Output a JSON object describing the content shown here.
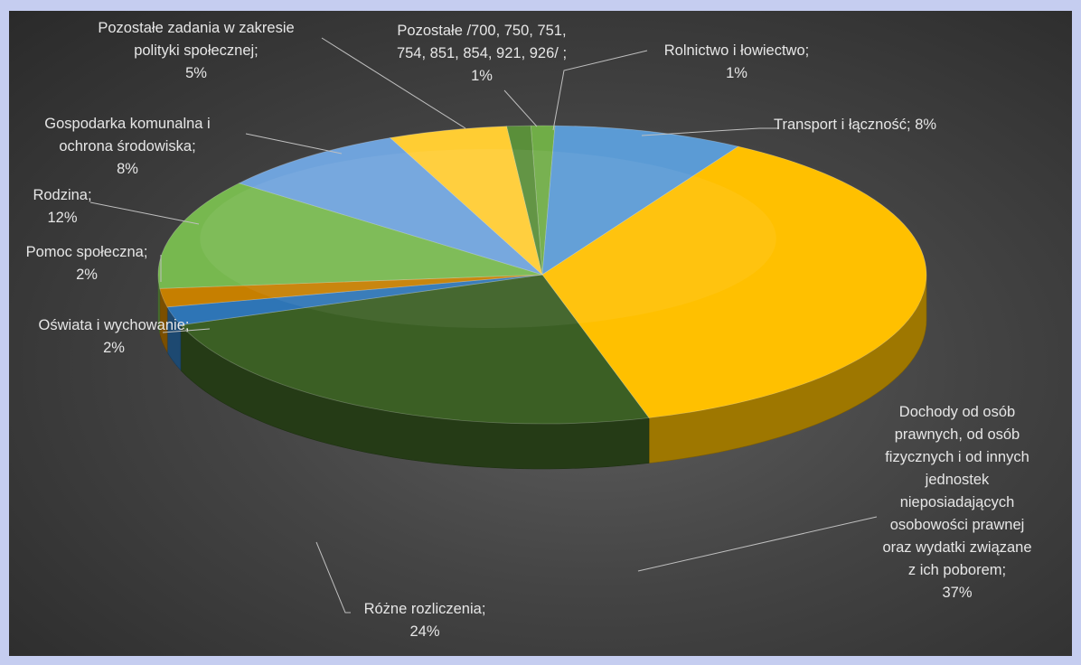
{
  "chart_data": {
    "type": "pie",
    "title": "",
    "slices": [
      {
        "label": "Rolnictwo i łowiectwo;\n1%",
        "name": "Rolnictwo i łowiectwo",
        "value": 1,
        "color": "#70ad47"
      },
      {
        "label": "Transport i łączność; 8%",
        "name": "Transport i łączność",
        "value": 8,
        "color": "#5b9bd5"
      },
      {
        "label": "Dochody od osób\nprawnych, od osób\nfizycznych i od innych\njednostek\nnieposiadających\nosobowości prawnej\noraz wydatki związane\nz ich poborem;\n37%",
        "name": "Dochody od osób prawnych, od osób fizycznych i od innych jednostek nieposiadających osobowości prawnej oraz wydatki związane z ich poborem",
        "value": 37,
        "color": "#ffc000"
      },
      {
        "label": "Różne rozliczenia;\n24%",
        "name": "Różne rozliczenia",
        "value": 24,
        "color": "#3b5f24"
      },
      {
        "label": "Oświata i wychowanie;\n2%",
        "name": "Oświata i wychowanie",
        "value": 2,
        "color": "#2e75b6"
      },
      {
        "label": "Pomoc społeczna;\n2%",
        "name": "Pomoc społeczna",
        "value": 2,
        "color": "#c67f00"
      },
      {
        "label": "Rodzina;\n12%",
        "name": "Rodzina",
        "value": 12,
        "color": "#77b84f"
      },
      {
        "label": "Gospodarka komunalna i\nochrona środowiska;\n8%",
        "name": "Gospodarka komunalna i ochrona środowiska",
        "value": 8,
        "color": "#6fa3dc"
      },
      {
        "label": "Pozostałe zadania w zakresie\npolityki społecznej;\n5%",
        "name": "Pozostałe zadania w zakresie polityki społecznej",
        "value": 5,
        "color": "#ffcd33"
      },
      {
        "label": "Pozostałe /700, 750, 751,\n754, 851,  854, 921, 926/ ;\n1%",
        "name": "Pozostałe /700, 750, 751, 754, 851, 854, 921, 926/",
        "value": 1,
        "color": "#5a8f3a"
      }
    ],
    "legend": "none",
    "style": "3d-pie"
  }
}
